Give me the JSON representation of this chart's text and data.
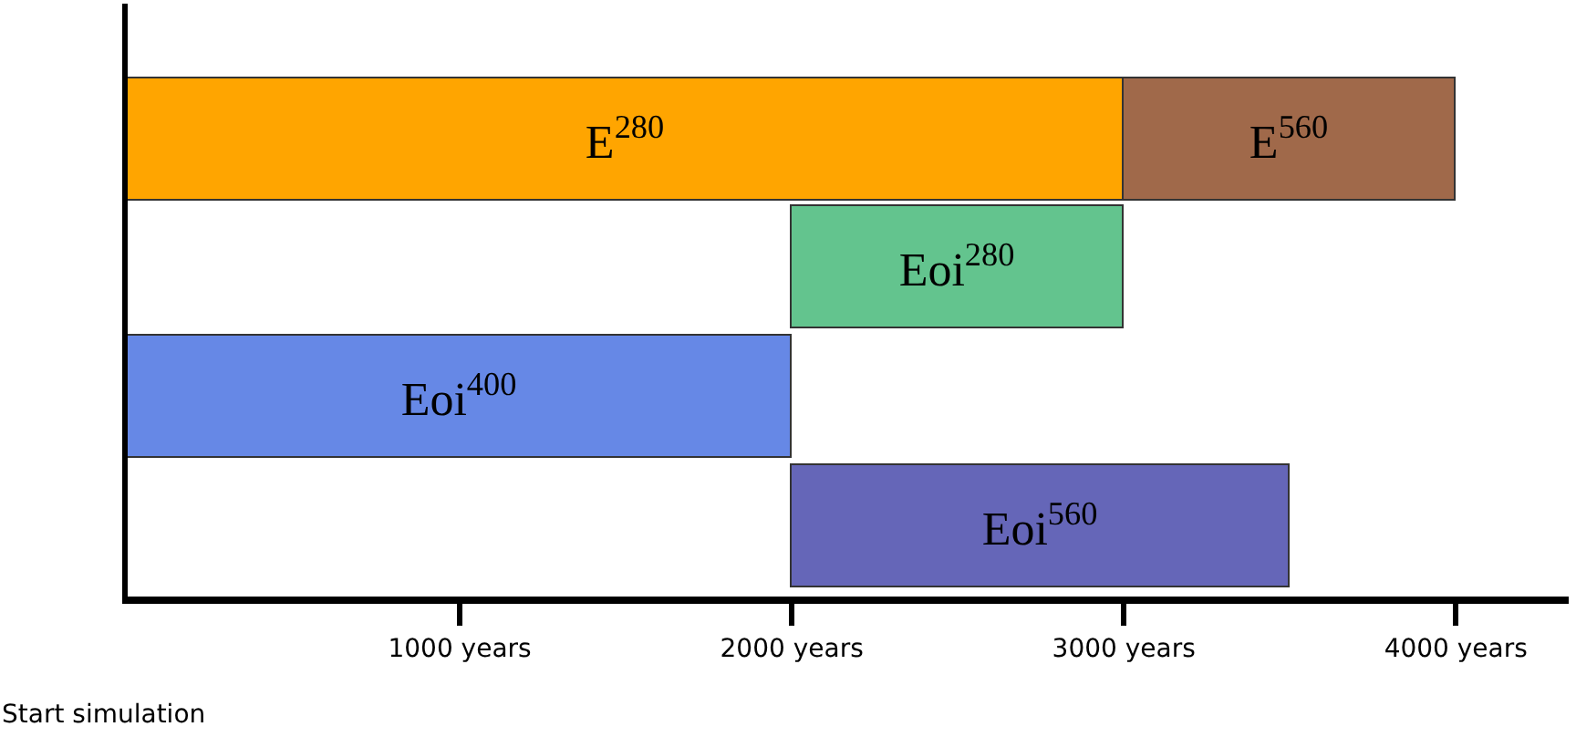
{
  "chart_data": {
    "type": "bar",
    "orientation": "horizontal",
    "categories": [
      null,
      null,
      null,
      null
    ],
    "series": [
      {
        "name": "E$^{280}$",
        "color": "#ffa500",
        "values": [
          3000,
          null,
          null,
          null
        ],
        "base": [
          0,
          null,
          null,
          null
        ]
      },
      {
        "name": "E$^{560}$",
        "color": "#a0694a",
        "values": [
          1000,
          null,
          null,
          null
        ],
        "base": [
          3000,
          null,
          null,
          null
        ]
      },
      {
        "name": "Eoi$^{280}$",
        "color": "#63c48e",
        "values": [
          null,
          1000,
          null,
          null
        ],
        "base": [
          null,
          2000,
          null,
          null
        ]
      },
      {
        "name": "Eoi$^{400}$",
        "color": "#6688e6",
        "values": [
          null,
          null,
          2000,
          null
        ],
        "base": [
          null,
          null,
          0,
          null
        ]
      },
      {
        "name": "Eoi$^{560}$",
        "color": "#6566b8",
        "values": [
          null,
          null,
          null,
          1500
        ],
        "base": [
          null,
          null,
          null,
          2000
        ]
      }
    ],
    "xlim": [
      0,
      4340
    ],
    "xticks": [
      {
        "value": 1000,
        "label": "1000 years"
      },
      {
        "value": 2000,
        "label": "2000 years"
      },
      {
        "value": 3000,
        "label": "3000 years"
      },
      {
        "value": 4000,
        "label": "4000 years"
      }
    ],
    "tick_labels": "x",
    "legend": false,
    "annotations": [
      "Start simulation"
    ]
  }
}
